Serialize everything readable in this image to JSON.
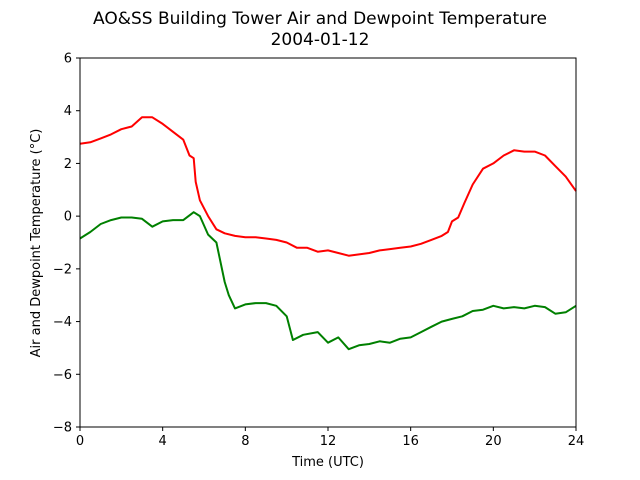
{
  "chart_data": {
    "type": "line",
    "title": "AO&SS Building Tower Air and Dewpoint Temperature",
    "subtitle": "2004-01-12",
    "xlabel": "Time (UTC)",
    "ylabel": "Air and Dewpoint Temperature (°C)",
    "xlim": [
      0,
      24
    ],
    "ylim": [
      -8,
      6
    ],
    "xticks": [
      0,
      4,
      8,
      12,
      16,
      20,
      24
    ],
    "yticks": [
      -8,
      -6,
      -4,
      -2,
      0,
      2,
      4,
      6
    ],
    "grid": false,
    "series": [
      {
        "color": "#ff0000",
        "x": [
          0,
          0.5,
          1,
          1.5,
          2,
          2.5,
          3,
          3.5,
          4,
          4.5,
          5,
          5.3,
          5.5,
          5.6,
          5.8,
          6.2,
          6.6,
          7,
          7.5,
          8,
          8.5,
          9,
          9.5,
          10,
          10.5,
          11,
          11.5,
          12,
          12.5,
          13,
          13.5,
          14,
          14.5,
          15,
          15.5,
          16,
          16.5,
          17,
          17.5,
          17.8,
          18,
          18.3,
          18.6,
          19,
          19.5,
          20,
          20.5,
          21,
          21.5,
          22,
          22.5,
          23,
          23.5,
          24
        ],
        "y": [
          2.75,
          2.8,
          2.95,
          3.1,
          3.3,
          3.4,
          3.75,
          3.75,
          3.5,
          3.2,
          2.9,
          2.3,
          2.2,
          1.3,
          0.6,
          0.0,
          -0.5,
          -0.65,
          -0.75,
          -0.8,
          -0.8,
          -0.85,
          -0.9,
          -1.0,
          -1.2,
          -1.2,
          -1.35,
          -1.3,
          -1.4,
          -1.5,
          -1.45,
          -1.4,
          -1.3,
          -1.25,
          -1.2,
          -1.15,
          -1.05,
          -0.9,
          -0.75,
          -0.6,
          -0.2,
          -0.05,
          0.5,
          1.2,
          1.8,
          2.0,
          2.3,
          2.5,
          2.45,
          2.45,
          2.3,
          1.9,
          1.5,
          0.95
        ]
      },
      {
        "color": "#008000",
        "x": [
          0,
          0.5,
          1,
          1.5,
          2,
          2.5,
          3,
          3.5,
          4,
          4.5,
          5,
          5.5,
          5.8,
          6.2,
          6.6,
          7,
          7.2,
          7.5,
          8,
          8.5,
          9,
          9.5,
          10,
          10.3,
          10.8,
          11.5,
          12,
          12.5,
          13,
          13.5,
          14,
          14.5,
          15,
          15.5,
          16,
          16.5,
          17,
          17.5,
          18,
          18.5,
          19,
          19.5,
          20,
          20.5,
          21,
          21.5,
          22,
          22.5,
          23,
          23.5,
          24
        ],
        "y": [
          -0.85,
          -0.6,
          -0.3,
          -0.15,
          -0.05,
          -0.05,
          -0.1,
          -0.4,
          -0.2,
          -0.15,
          -0.15,
          0.15,
          0.0,
          -0.7,
          -1.0,
          -2.5,
          -3.0,
          -3.5,
          -3.35,
          -3.3,
          -3.3,
          -3.4,
          -3.8,
          -4.7,
          -4.5,
          -4.4,
          -4.8,
          -4.6,
          -5.05,
          -4.9,
          -4.85,
          -4.75,
          -4.8,
          -4.65,
          -4.6,
          -4.4,
          -4.2,
          -4.0,
          -3.9,
          -3.8,
          -3.6,
          -3.55,
          -3.4,
          -3.5,
          -3.45,
          -3.5,
          -3.4,
          -3.45,
          -3.7,
          -3.65,
          -3.4
        ]
      }
    ]
  }
}
